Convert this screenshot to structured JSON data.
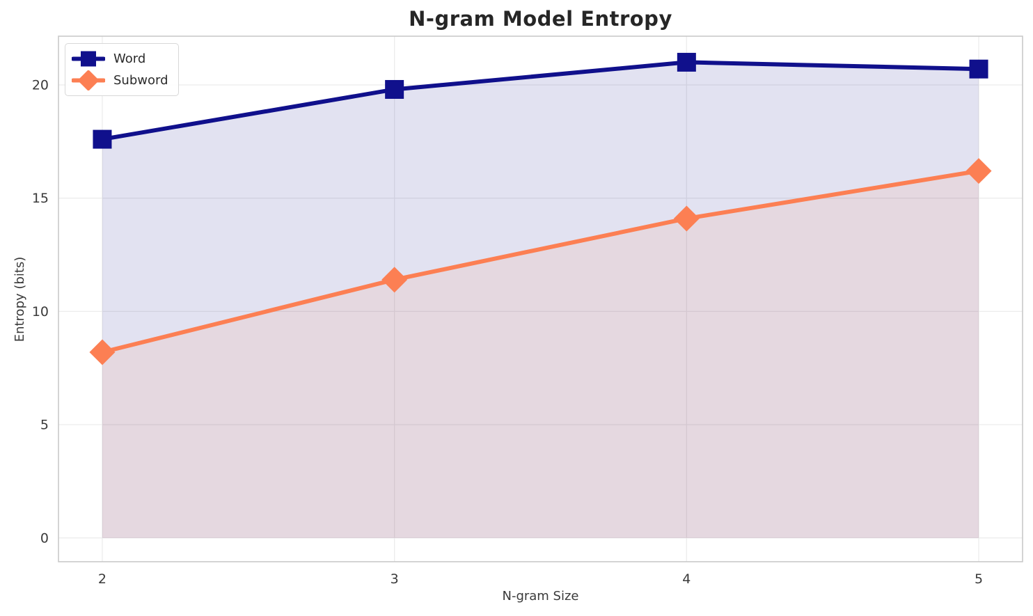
{
  "chart_data": {
    "type": "line",
    "title": "N-gram Model Entropy",
    "xlabel": "N-gram Size",
    "ylabel": "Entropy (bits)",
    "categories": [
      2,
      3,
      4,
      5
    ],
    "series": [
      {
        "name": "Word",
        "values": [
          17.6,
          19.8,
          21.0,
          20.7
        ],
        "color": "#10108c",
        "marker": "square",
        "fill_opacity": 0.12
      },
      {
        "name": "Subword",
        "values": [
          8.2,
          11.4,
          14.1,
          16.2
        ],
        "color": "#fc7f53",
        "marker": "diamond",
        "fill_opacity": 0.1
      }
    ],
    "area_fill": true,
    "fill_baseline": 0,
    "xticks": [
      "2",
      "3",
      "4",
      "5"
    ],
    "yticks": [
      "0",
      "5",
      "10",
      "15",
      "20"
    ],
    "xtick_values": [
      2,
      3,
      4,
      5
    ],
    "ytick_values": [
      0,
      5,
      10,
      15,
      20
    ],
    "xlim": [
      1.85,
      5.15
    ],
    "ylim": [
      -1.05,
      22.15
    ],
    "grid": true,
    "legend_position": "upper-left"
  },
  "style_colors": {
    "grid": "#ececec",
    "spine": "#c9c9c9",
    "tick_label": "#3a3a3a",
    "title": "#262626",
    "legend_text": "#2b2b2b",
    "background": "#ffffff"
  }
}
